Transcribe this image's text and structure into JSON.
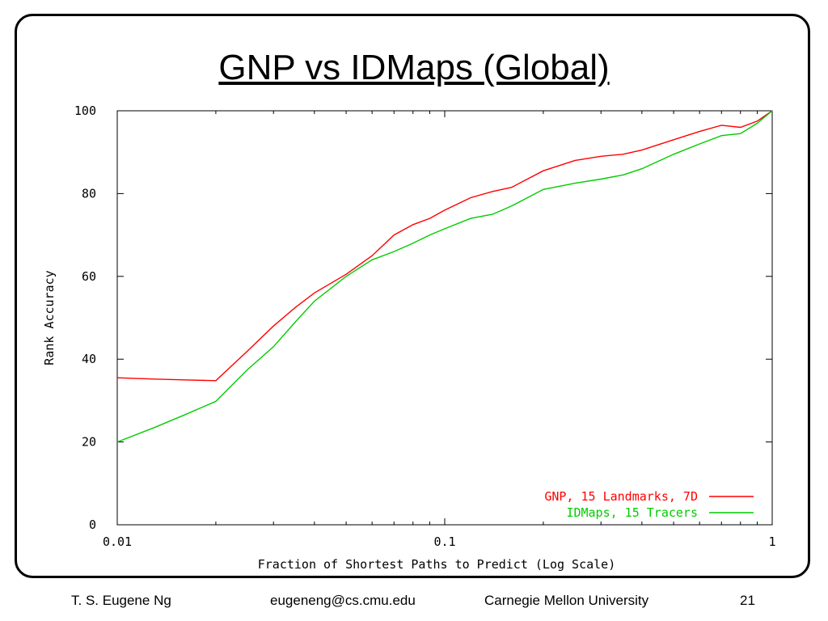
{
  "slide": {
    "title": "GNP vs IDMaps (Global)",
    "footer": {
      "author": "T. S. Eugene Ng",
      "email": "eugeneng@cs.cmu.edu",
      "institution": "Carnegie Mellon University",
      "page": "21"
    }
  },
  "chart_data": {
    "type": "line",
    "title": "",
    "xlabel": "Fraction of Shortest Paths to Predict (Log Scale)",
    "ylabel": "Rank Accuracy",
    "xscale": "log",
    "xlim": [
      0.01,
      1
    ],
    "ylim": [
      0,
      100
    ],
    "xticks": [
      {
        "value": 0.01,
        "label": "0.01"
      },
      {
        "value": 0.1,
        "label": "0.1"
      },
      {
        "value": 1,
        "label": "1"
      }
    ],
    "yticks": [
      {
        "value": 0,
        "label": "0"
      },
      {
        "value": 20,
        "label": "20"
      },
      {
        "value": 40,
        "label": "40"
      },
      {
        "value": 60,
        "label": "60"
      },
      {
        "value": 80,
        "label": "80"
      },
      {
        "value": 100,
        "label": "100"
      }
    ],
    "grid": false,
    "legend_position": "bottom-right",
    "series": [
      {
        "name": "GNP, 15 Landmarks, 7D",
        "color": "#ff0000",
        "x": [
          0.01,
          0.013,
          0.016,
          0.02,
          0.025,
          0.03,
          0.035,
          0.04,
          0.05,
          0.06,
          0.07,
          0.08,
          0.09,
          0.1,
          0.12,
          0.14,
          0.16,
          0.2,
          0.25,
          0.3,
          0.35,
          0.4,
          0.5,
          0.6,
          0.7,
          0.8,
          0.9,
          1.0
        ],
        "y": [
          35.5,
          35.2,
          35.0,
          34.8,
          42.0,
          48.0,
          52.5,
          56.0,
          60.5,
          65.0,
          70.0,
          72.5,
          74.0,
          76.0,
          79.0,
          80.5,
          81.5,
          85.5,
          88.0,
          89.0,
          89.5,
          90.5,
          93.0,
          95.0,
          96.5,
          96.0,
          97.5,
          100.0
        ]
      },
      {
        "name": "IDMaps, 15 Tracers",
        "color": "#00cc00",
        "x": [
          0.01,
          0.013,
          0.016,
          0.02,
          0.025,
          0.03,
          0.035,
          0.04,
          0.05,
          0.06,
          0.07,
          0.08,
          0.09,
          0.1,
          0.12,
          0.14,
          0.16,
          0.2,
          0.25,
          0.3,
          0.35,
          0.4,
          0.5,
          0.6,
          0.7,
          0.8,
          0.9,
          1.0
        ],
        "y": [
          20.0,
          23.5,
          26.5,
          29.8,
          37.5,
          43.0,
          49.0,
          54.0,
          60.0,
          64.0,
          66.0,
          68.0,
          70.0,
          71.5,
          74.0,
          75.0,
          77.0,
          81.0,
          82.5,
          83.5,
          84.5,
          86.0,
          89.5,
          92.0,
          94.0,
          94.5,
          97.0,
          100.0
        ]
      }
    ]
  }
}
